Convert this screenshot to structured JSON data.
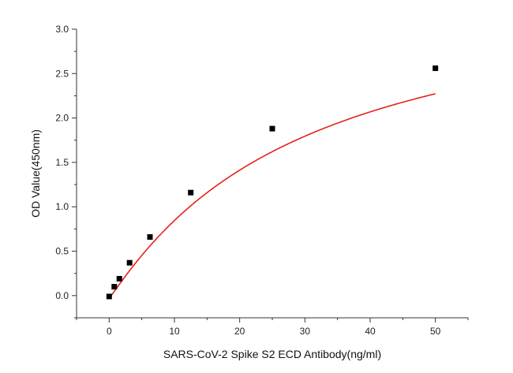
{
  "chart_data": {
    "type": "scatter",
    "title": "",
    "xlabel": "SARS-CoV-2 Spike S2 ECD Antibody(ng/ml)",
    "ylabel": "OD Value(450nm)",
    "xlim": [
      -5,
      55
    ],
    "ylim": [
      -0.25,
      3.0
    ],
    "xticks": [
      0,
      10,
      20,
      30,
      40,
      50
    ],
    "yticks": [
      0.0,
      0.5,
      1.0,
      1.5,
      2.0,
      2.5,
      3.0
    ],
    "xtick_labels": [
      "0",
      "10",
      "20",
      "30",
      "40",
      "50"
    ],
    "ytick_labels": [
      "0.0",
      "0.5",
      "1.0",
      "1.5",
      "2.0",
      "2.5",
      "3.0"
    ],
    "grid": false,
    "legend": "none",
    "series": [
      {
        "x": [
          0,
          0.78,
          1.56,
          3.125,
          6.25,
          12.5,
          25,
          50
        ],
        "y": [
          -0.01,
          0.1,
          0.19,
          0.37,
          0.66,
          1.16,
          1.88,
          2.56
        ],
        "marker": "square",
        "color": "#000000"
      }
    ],
    "fit_curve": {
      "color": "#e8201a",
      "x_range": [
        0,
        50
      ],
      "model": "4PL",
      "params": {
        "a": -0.03,
        "b": 1.05,
        "c": 30,
        "d": 3.62
      }
    }
  }
}
